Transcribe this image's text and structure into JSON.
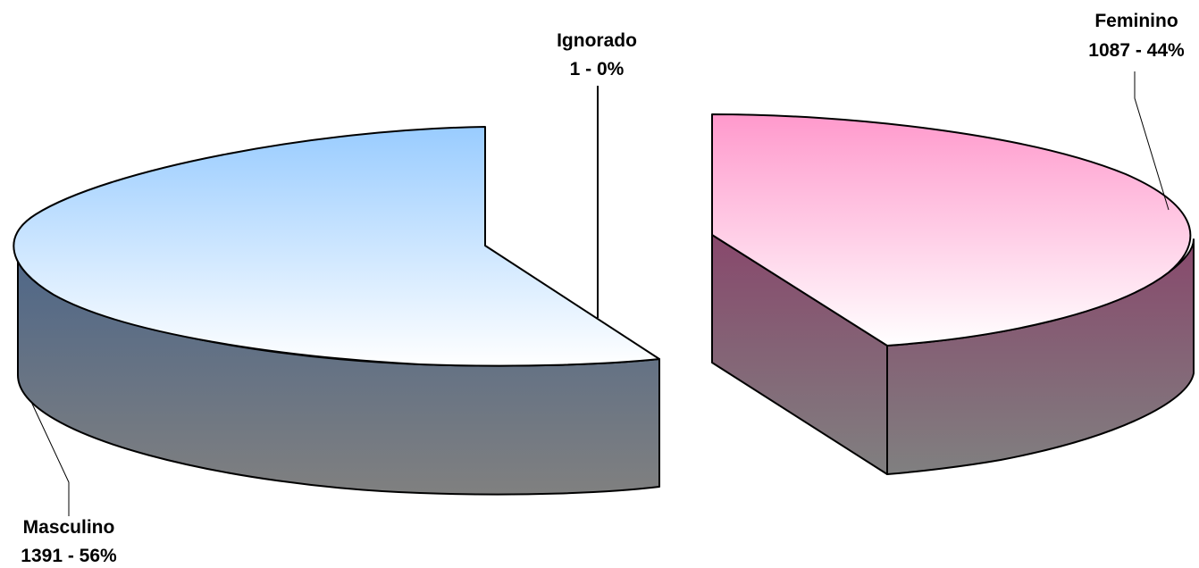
{
  "chart_data": {
    "type": "pie",
    "style": "3d-exploded",
    "title": "",
    "slices": [
      {
        "name": "Masculino",
        "value": 1391,
        "percent_label": "1391 - 56%",
        "color": "#99ccff"
      },
      {
        "name": "Feminino",
        "value": 1087,
        "percent_label": "1087 - 44%",
        "color": "#ff99cc"
      },
      {
        "name": "Ignorado",
        "value": 1,
        "percent_label": "1 - 0%",
        "color": "#ffffff"
      }
    ],
    "legend": "none",
    "data_labels": "outside-with-leader-lines"
  }
}
